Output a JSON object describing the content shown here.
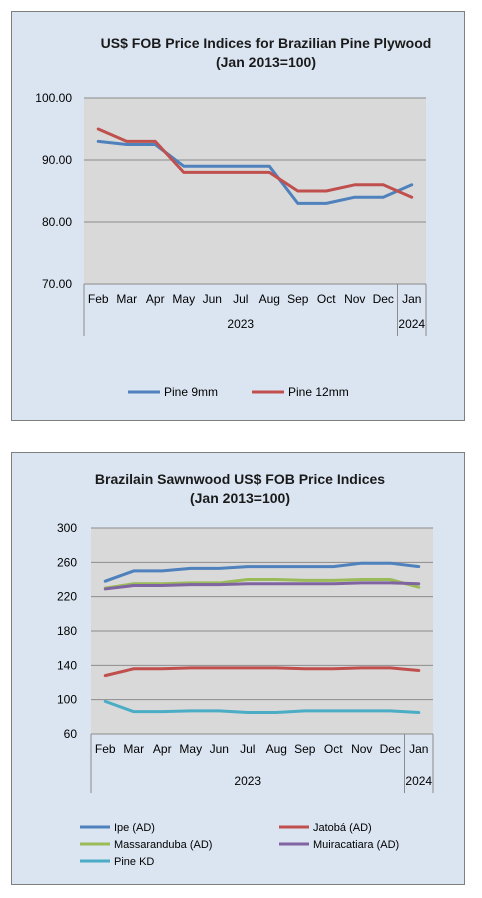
{
  "chart_data": [
    {
      "type": "line",
      "title": "US$ FOB Price Indices for Brazilian  Pine Plywood",
      "subtitle": "(Jan 2013=100)",
      "categories": [
        "Feb",
        "Mar",
        "Apr",
        "May",
        "Jun",
        "Jul",
        "Aug",
        "Sep",
        "Oct",
        "Nov",
        "Dec",
        "Jan"
      ],
      "year_groups": [
        {
          "label": "2023",
          "span": 11
        },
        {
          "label": "2024",
          "span": 1
        }
      ],
      "ylim": [
        70,
        100
      ],
      "yticks": [
        "70.00",
        "80.00",
        "90.00",
        "100.00"
      ],
      "grid": true,
      "legend_position": "bottom",
      "series": [
        {
          "name": "Pine 9mm",
          "color": "#4f81bd",
          "values": [
            93,
            92.5,
            92.5,
            89,
            89,
            89,
            89,
            83,
            83,
            84,
            84,
            86
          ]
        },
        {
          "name": "Pine 12mm",
          "color": "#c0504d",
          "values": [
            95,
            93,
            93,
            88,
            88,
            88,
            88,
            85,
            85,
            86,
            86,
            84
          ]
        }
      ]
    },
    {
      "type": "line",
      "title": "Brazilain Sawnwood US$ FOB Price Indices",
      "subtitle": "(Jan 2013=100)",
      "categories": [
        "Feb",
        "Mar",
        "Apr",
        "May",
        "Jun",
        "Jul",
        "Aug",
        "Sep",
        "Oct",
        "Nov",
        "Dec",
        "Jan"
      ],
      "year_groups": [
        {
          "label": "2023",
          "span": 11
        },
        {
          "label": "2024",
          "span": 1
        }
      ],
      "ylim": [
        60,
        300
      ],
      "yticks": [
        "60",
        "100",
        "140",
        "180",
        "220",
        "260",
        "300"
      ],
      "grid": true,
      "legend_position": "bottom",
      "series": [
        {
          "name": "Ipe (AD)",
          "color": "#4f81bd",
          "values": [
            238,
            250,
            250,
            253,
            253,
            255,
            255,
            255,
            255,
            259,
            259,
            255
          ]
        },
        {
          "name": "Jatobá (AD)",
          "color": "#c0504d",
          "values": [
            128,
            136,
            136,
            137,
            137,
            137,
            137,
            136,
            136,
            137,
            137,
            134
          ]
        },
        {
          "name": "Massaranduba (AD)",
          "color": "#9bbb59",
          "values": [
            230,
            235,
            235,
            236,
            236,
            240,
            240,
            239,
            239,
            240,
            240,
            231
          ]
        },
        {
          "name": "Muiracatiara (AD)",
          "color": "#8064a2",
          "values": [
            229,
            233,
            233,
            234,
            234,
            235,
            235,
            235,
            235,
            236,
            236,
            235
          ]
        },
        {
          "name": "Pine KD",
          "color": "#4bacc6",
          "values": [
            98,
            86,
            86,
            87,
            87,
            85,
            85,
            87,
            87,
            87,
            87,
            85
          ]
        }
      ]
    }
  ]
}
